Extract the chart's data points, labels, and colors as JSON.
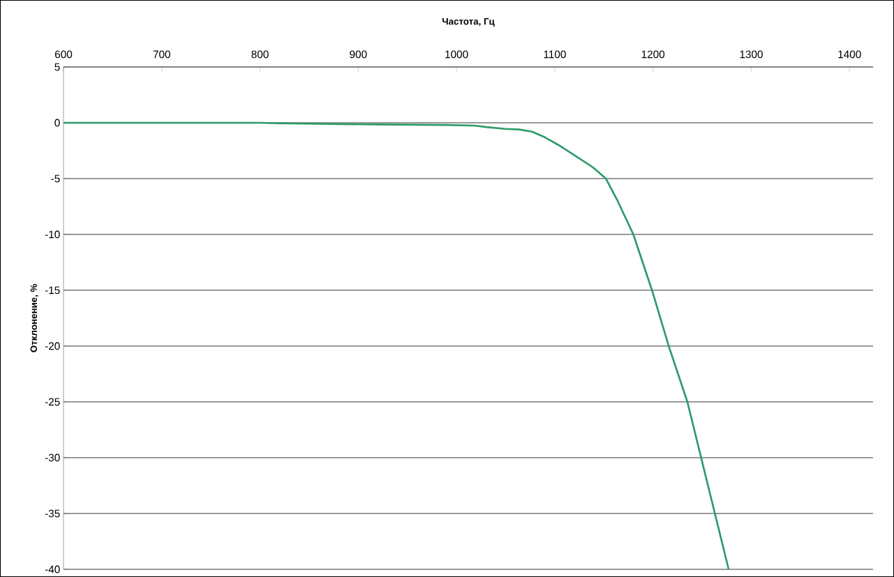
{
  "chart_data": {
    "type": "line",
    "xlabel": "Частота, Гц",
    "ylabel": "Отклонение, %",
    "xlim": [
      600,
      1424
    ],
    "xticks": [
      600,
      700,
      800,
      900,
      1000,
      1100,
      1200,
      1300,
      1400
    ],
    "ylim": [
      -40,
      5
    ],
    "yticks": [
      5,
      0,
      -5,
      -10,
      -15,
      -20,
      -25,
      -30,
      -35,
      -40
    ],
    "grid": "y",
    "marker": "none",
    "line_style": "solid",
    "series": [
      {
        "color": "#2e9a6a",
        "x": [
          600,
          700,
          800,
          820,
          919,
          990,
          1018,
          1032,
          1050,
          1064,
          1077,
          1090,
          1104,
          1127,
          1139,
          1152,
          1164,
          1180,
          1199,
          1216,
          1235,
          1249,
          1263,
          1277
        ],
        "values": [
          0,
          0,
          0,
          -0.05,
          -0.15,
          -0.2,
          -0.25,
          -0.4,
          -0.55,
          -0.6,
          -0.8,
          -1.3,
          -2.0,
          -3.3,
          -4.0,
          -5.0,
          -7.0,
          -10,
          -15,
          -20,
          -25,
          -30,
          -35,
          -40
        ]
      }
    ]
  }
}
